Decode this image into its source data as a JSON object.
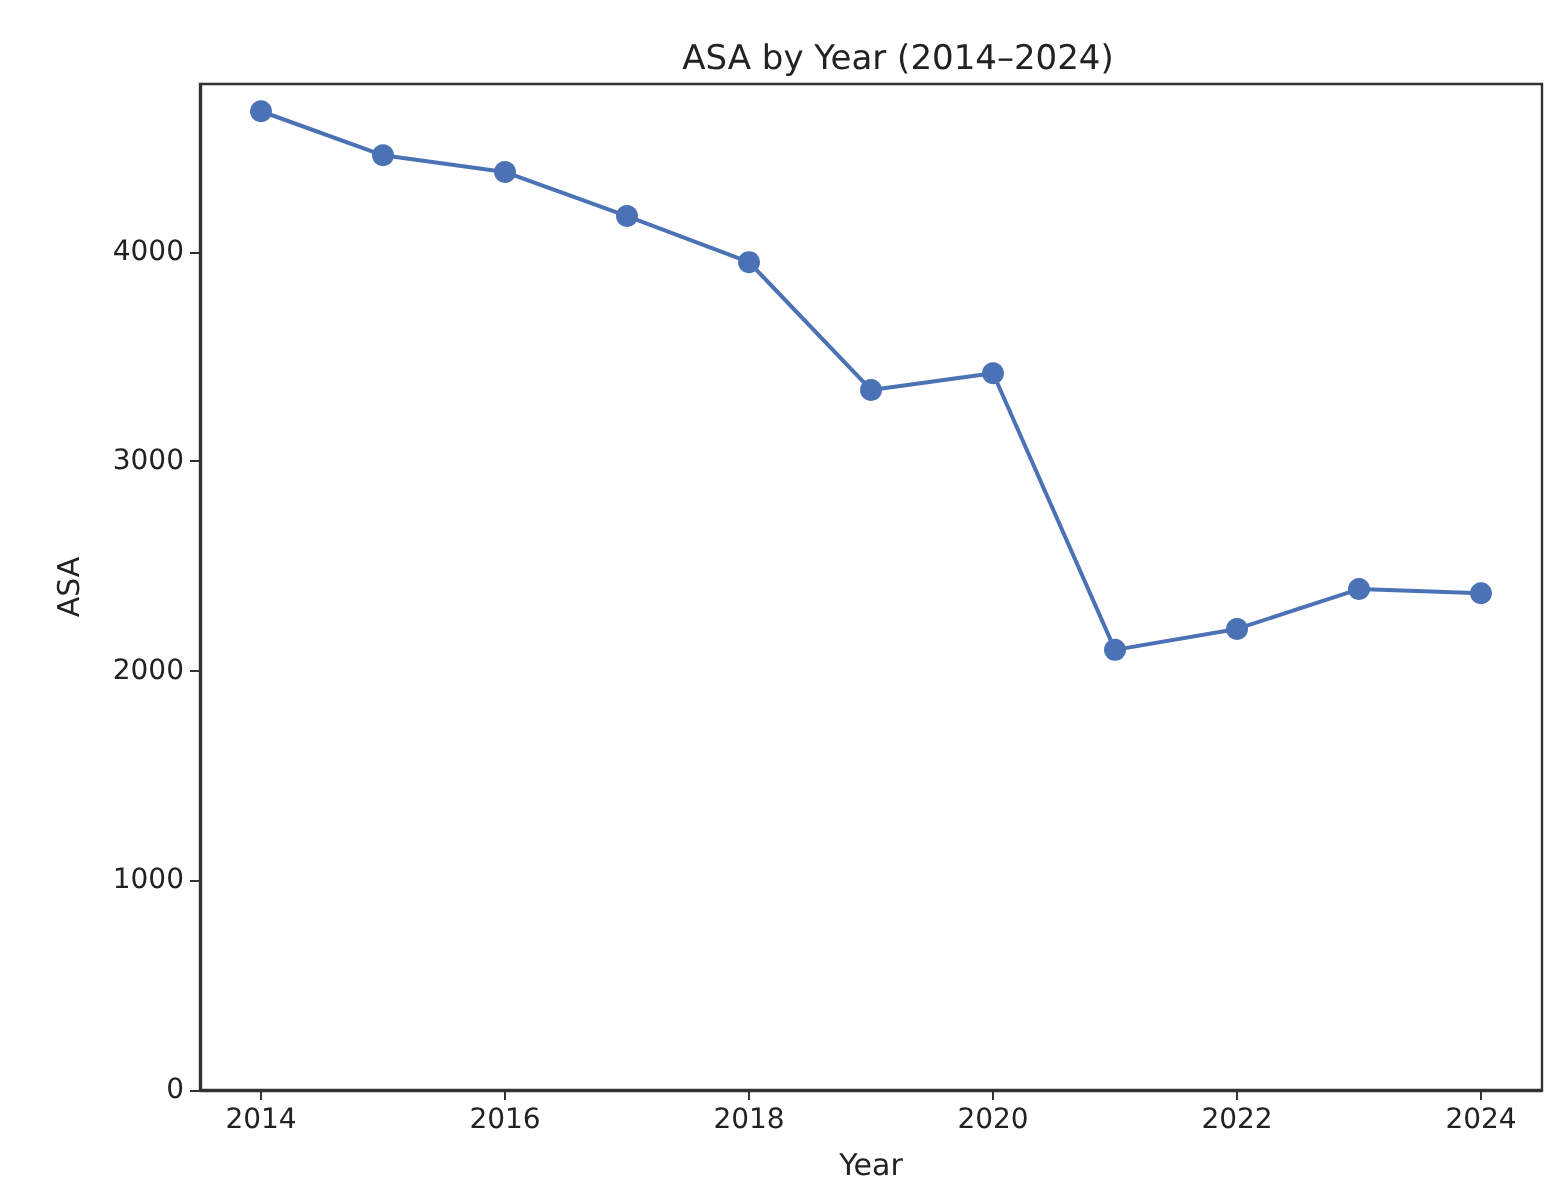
{
  "chart_data": {
    "type": "line",
    "title": "ASA by Year (2014–2024)",
    "xlabel": "Year",
    "ylabel": "ASA",
    "x": [
      2014,
      2015,
      2016,
      2017,
      2018,
      2019,
      2020,
      2021,
      2022,
      2023,
      2024
    ],
    "series": [
      {
        "color": "#4a72b5",
        "values": [
          4670,
          4460,
          4380,
          4170,
          3950,
          3340,
          3420,
          2100,
          2200,
          2390,
          2370
        ]
      }
    ],
    "xlim": [
      2013.5,
      2024.5
    ],
    "xticks": [
      2014,
      2016,
      2018,
      2020,
      2022,
      2024
    ],
    "ylim": [
      0,
      4800
    ],
    "yticks": [
      0,
      1000,
      2000,
      3000,
      4000
    ],
    "grid": false,
    "marker": "circle",
    "line_style": "solid"
  }
}
